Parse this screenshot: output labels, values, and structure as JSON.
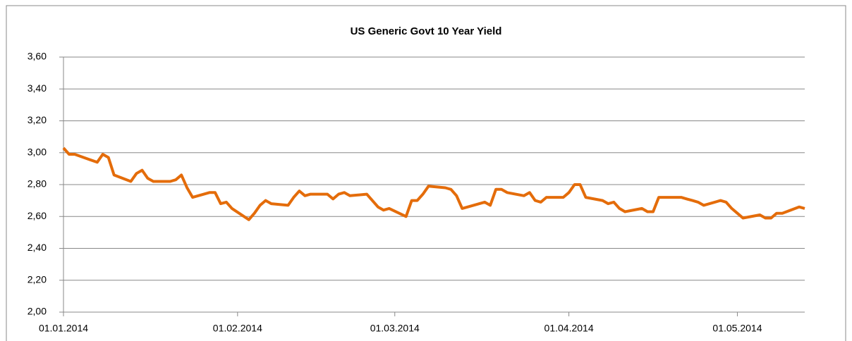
{
  "chart_data": {
    "type": "line",
    "title": "US Generic Govt 10 Year Yield",
    "x": [
      "2014-01-01",
      "2014-01-02",
      "2014-01-03",
      "2014-01-07",
      "2014-01-08",
      "2014-01-09",
      "2014-01-10",
      "2014-01-13",
      "2014-01-14",
      "2014-01-15",
      "2014-01-16",
      "2014-01-17",
      "2014-01-20",
      "2014-01-21",
      "2014-01-22",
      "2014-01-23",
      "2014-01-24",
      "2014-01-27",
      "2014-01-28",
      "2014-01-29",
      "2014-01-30",
      "2014-01-31",
      "2014-02-03",
      "2014-02-04",
      "2014-02-05",
      "2014-02-06",
      "2014-02-07",
      "2014-02-10",
      "2014-02-11",
      "2014-02-12",
      "2014-02-13",
      "2014-02-14",
      "2014-02-17",
      "2014-02-18",
      "2014-02-19",
      "2014-02-20",
      "2014-02-21",
      "2014-02-24",
      "2014-02-25",
      "2014-02-26",
      "2014-02-27",
      "2014-02-28",
      "2014-03-03",
      "2014-03-04",
      "2014-03-05",
      "2014-03-06",
      "2014-03-07",
      "2014-03-10",
      "2014-03-11",
      "2014-03-12",
      "2014-03-13",
      "2014-03-14",
      "2014-03-17",
      "2014-03-18",
      "2014-03-19",
      "2014-03-20",
      "2014-03-21",
      "2014-03-24",
      "2014-03-25",
      "2014-03-26",
      "2014-03-27",
      "2014-03-28",
      "2014-03-31",
      "2014-04-01",
      "2014-04-02",
      "2014-04-03",
      "2014-04-04",
      "2014-04-07",
      "2014-04-08",
      "2014-04-09",
      "2014-04-10",
      "2014-04-11",
      "2014-04-14",
      "2014-04-15",
      "2014-04-16",
      "2014-04-17",
      "2014-04-18",
      "2014-04-21",
      "2014-04-22",
      "2014-04-23",
      "2014-04-24",
      "2014-04-25",
      "2014-04-28",
      "2014-04-29",
      "2014-04-30",
      "2014-05-01",
      "2014-05-02",
      "2014-05-05",
      "2014-05-06",
      "2014-05-07",
      "2014-05-08",
      "2014-05-09",
      "2014-05-12",
      "2014-05-13"
    ],
    "series": [
      {
        "name": "US Generic Govt 10 Year Yield",
        "color": "#e46c0a",
        "values": [
          3.03,
          2.99,
          2.99,
          2.94,
          2.99,
          2.97,
          2.86,
          2.82,
          2.87,
          2.89,
          2.84,
          2.82,
          2.82,
          2.83,
          2.86,
          2.78,
          2.72,
          2.75,
          2.75,
          2.68,
          2.69,
          2.65,
          2.58,
          2.62,
          2.67,
          2.7,
          2.68,
          2.67,
          2.72,
          2.76,
          2.73,
          2.74,
          2.74,
          2.71,
          2.74,
          2.75,
          2.73,
          2.74,
          2.7,
          2.66,
          2.64,
          2.65,
          2.6,
          2.7,
          2.7,
          2.74,
          2.79,
          2.78,
          2.77,
          2.73,
          2.65,
          2.66,
          2.69,
          2.67,
          2.77,
          2.77,
          2.75,
          2.73,
          2.75,
          2.7,
          2.69,
          2.72,
          2.72,
          2.75,
          2.8,
          2.8,
          2.72,
          2.7,
          2.68,
          2.69,
          2.65,
          2.63,
          2.65,
          2.63,
          2.63,
          2.72,
          2.72,
          2.72,
          2.71,
          2.7,
          2.69,
          2.67,
          2.7,
          2.69,
          2.65,
          2.62,
          2.59,
          2.61,
          2.59,
          2.59,
          2.62,
          2.62,
          2.66,
          2.65
        ]
      }
    ],
    "xlim": [
      "2014-01-01",
      "2014-05-13"
    ],
    "xticks": [
      {
        "value": "2014-01-01",
        "label": "01.01.2014"
      },
      {
        "value": "2014-02-01",
        "label": "01.02.2014"
      },
      {
        "value": "2014-03-01",
        "label": "01.03.2014"
      },
      {
        "value": "2014-04-01",
        "label": "01.04.2014"
      },
      {
        "value": "2014-05-01",
        "label": "01.05.2014"
      }
    ],
    "ylim": [
      2.0,
      3.6
    ],
    "yticks": [
      {
        "value": 2.0,
        "label": "2,00"
      },
      {
        "value": 2.2,
        "label": "2,20"
      },
      {
        "value": 2.4,
        "label": "2,40"
      },
      {
        "value": 2.6,
        "label": "2,60"
      },
      {
        "value": 2.8,
        "label": "2,80"
      },
      {
        "value": 3.0,
        "label": "3,00"
      },
      {
        "value": 3.2,
        "label": "3,20"
      },
      {
        "value": 3.4,
        "label": "3,40"
      },
      {
        "value": 3.6,
        "label": "3,60"
      }
    ],
    "grid": true
  }
}
